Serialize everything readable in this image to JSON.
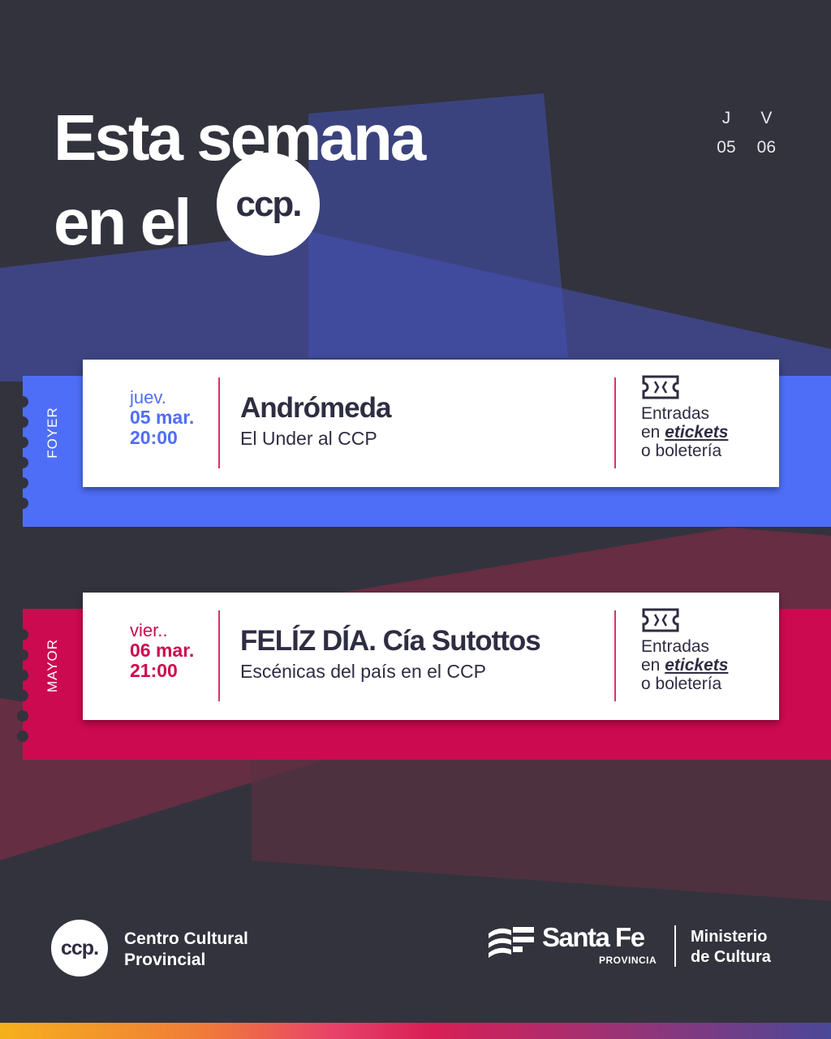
{
  "header": {
    "title_line1": "Esta semana",
    "title_line2": "en el",
    "badge": "ccp."
  },
  "days": [
    {
      "letter": "J",
      "num": "05"
    },
    {
      "letter": "V",
      "num": "06"
    }
  ],
  "events": [
    {
      "venue": "FOYER",
      "weekday": "juev.",
      "date": "05 mar.",
      "time": "20:00",
      "title": "Andrómeda",
      "subtitle": "El Under al CCP",
      "tickets_1": "Entradas",
      "tickets_2a": "en ",
      "tickets_link": "etickets",
      "tickets_3": "o boletería",
      "color": "#4f6ef7"
    },
    {
      "venue": "MAYOR",
      "weekday": "vier..",
      "date": "06 mar.",
      "time": "21:00",
      "title": "FELÍZ DÍA. Cía Sutottos",
      "subtitle": "Escénicas del país en el CCP",
      "tickets_1": "Entradas",
      "tickets_2a": "en ",
      "tickets_link": "etickets",
      "tickets_3": "o boletería",
      "color": "#cc0a4f"
    }
  ],
  "footer": {
    "logo": "ccp.",
    "name_1": "Centro Cultural",
    "name_2": "Provincial",
    "sf_name": "Santa Fe",
    "sf_sub": "PROVINCIA",
    "min_1": "Ministerio",
    "min_2": "de Cultura"
  }
}
